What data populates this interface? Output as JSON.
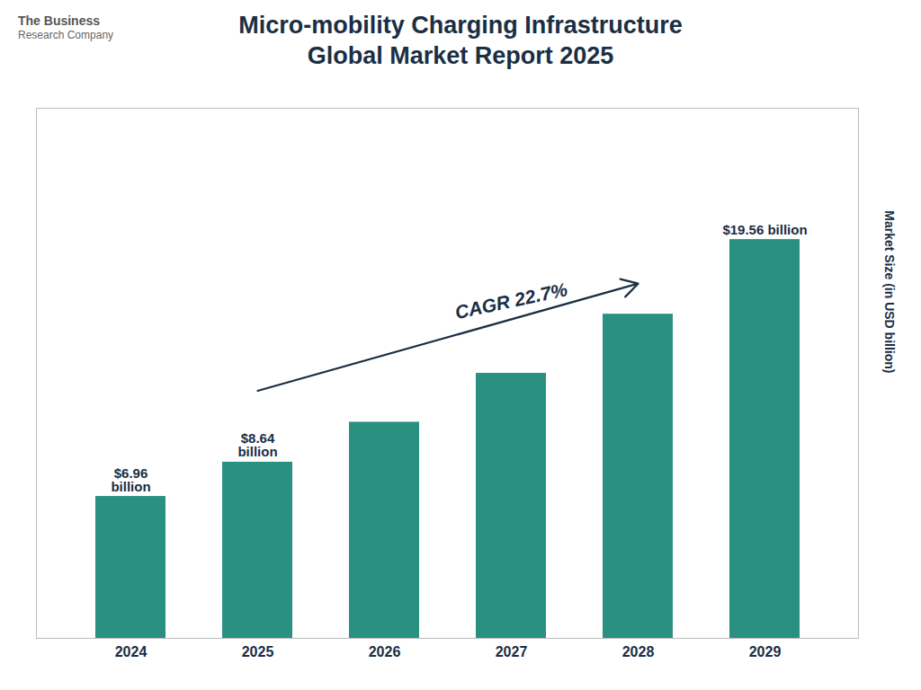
{
  "chart_data": {
    "type": "bar",
    "title": "Micro-mobility Charging Infrastructure\nGlobal Market Report 2025",
    "y_label": "Market Size (in USD billion)",
    "categories": [
      "2024",
      "2025",
      "2026",
      "2027",
      "2028",
      "2029"
    ],
    "values": [
      6.96,
      8.64,
      10.6,
      13.0,
      15.9,
      19.56
    ],
    "value_labels": [
      "$6.96\nbillion",
      "$8.64\nbillion",
      null,
      null,
      null,
      "$19.56 billion"
    ],
    "data_labels": true,
    "color": "#2a9080",
    "ylim": [
      0,
      26
    ],
    "tick_labels": "x",
    "grid": false,
    "annotations": [
      "CAGR 22.7%",
      "The Business",
      "Research Company"
    ]
  }
}
